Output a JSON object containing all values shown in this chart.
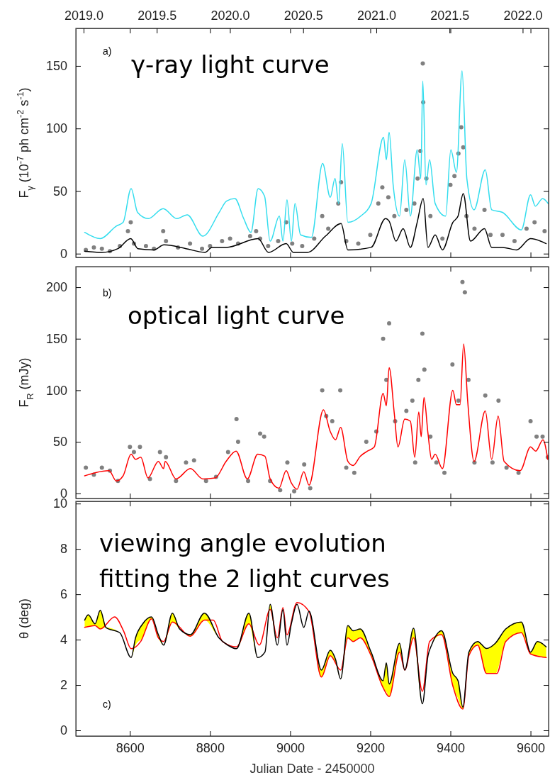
{
  "chart_data": [
    {
      "type": "line",
      "ylabel": "F$_{γ}$ (10$^{-7}$ ph cm$^{-2}$ s$^{-1}$)",
      "annotations": [
        "a)",
        "γ-ray light curve"
      ],
      "xlim": [
        8465,
        9645
      ],
      "xticks": [
        8600,
        8800,
        9000,
        9200,
        9400,
        9600
      ],
      "ylim": [
        -3,
        180
      ],
      "yticks": [
        0,
        50,
        100,
        150
      ],
      "tick_labels": "y",
      "x2lim": [
        2018.947,
        2022.177
      ],
      "x2ticks": [
        {
          "value": 2019,
          "label": "2019.0"
        },
        {
          "value": 2019.5,
          "label": "2019.5"
        },
        {
          "value": 2020,
          "label": "2020.0"
        },
        {
          "value": 2020.5,
          "label": "2020.5"
        },
        {
          "value": 2021,
          "label": "2021.0"
        },
        {
          "value": 2021.5,
          "label": "2021.5"
        },
        {
          "value": 2022,
          "label": "2022.0"
        }
      ],
      "series": [
        {
          "type": "scatter",
          "marker": "circle",
          "color": "#808080",
          "x": [
            8490,
            8510,
            8530,
            8550,
            8575,
            8595,
            8602,
            8610,
            8640,
            8660,
            8683,
            8690,
            8720,
            8750,
            8780,
            8800,
            8830,
            8850,
            8870,
            8900,
            8915,
            8925,
            8945,
            8970,
            8990,
            9005,
            9030,
            9060,
            9080,
            9095,
            9120,
            9127,
            9140,
            9170,
            9200,
            9220,
            9230,
            9245,
            9260,
            9290,
            9310,
            9318,
            9325,
            9331,
            9332,
            9340,
            9350,
            9380,
            9400,
            9410,
            9420,
            9427,
            9432,
            9440,
            9460,
            9485,
            9500,
            9530,
            9560,
            9590,
            9610,
            9635
          ],
          "values": [
            3,
            5,
            4,
            2,
            6,
            18,
            25,
            8,
            6,
            4,
            18,
            10,
            5,
            8,
            4,
            6,
            10,
            12,
            8,
            14,
            18,
            12,
            6,
            10,
            25,
            8,
            6,
            12,
            30,
            20,
            40,
            57,
            10,
            8,
            15,
            40,
            53,
            45,
            30,
            35,
            40,
            60,
            82,
            152,
            121,
            60,
            30,
            12,
            55,
            62,
            80,
            101,
            85,
            30,
            20,
            35,
            15,
            15,
            10,
            20,
            25,
            18
          ]
        },
        {
          "color": "#33ddee",
          "x": [
            8487,
            8526,
            8566,
            8583,
            8603,
            8619,
            8646,
            8683,
            8717,
            8743,
            8782,
            8823,
            8841,
            8862,
            8884,
            8902,
            8920,
            8936,
            8950,
            8973,
            8982,
            8992,
            9003,
            9012,
            9026,
            9053,
            9081,
            9100,
            9112,
            9121,
            9130,
            9144,
            9176,
            9202,
            9233,
            9240,
            9247,
            9257,
            9273,
            9286,
            9300,
            9317,
            9326,
            9331,
            9339,
            9348,
            9362,
            9388,
            9401,
            9415,
            9429,
            9441,
            9459,
            9487,
            9503,
            9530,
            9577,
            9600,
            9612,
            9630,
            9644
          ],
          "values": [
            17,
            12,
            22,
            25,
            52,
            33,
            28,
            36,
            28,
            31,
            14,
            33,
            42,
            44,
            28,
            17,
            52,
            46,
            10,
            30,
            10,
            43,
            10,
            40,
            15,
            13,
            72,
            45,
            60,
            40,
            88,
            25,
            30,
            40,
            93,
            75,
            97,
            55,
            30,
            75,
            30,
            83,
            60,
            138,
            55,
            75,
            40,
            30,
            83,
            65,
            146,
            60,
            35,
            67,
            35,
            33,
            19,
            47,
            38,
            44,
            40
          ]
        },
        {
          "color": "#000000",
          "x": [
            8487,
            8530,
            8570,
            8602,
            8620,
            8660,
            8685,
            8740,
            8787,
            8805,
            8840,
            8920,
            8946,
            8990,
            9008,
            9043,
            9088,
            9127,
            9144,
            9202,
            9238,
            9247,
            9264,
            9282,
            9300,
            9317,
            9332,
            9344,
            9362,
            9380,
            9406,
            9419,
            9432,
            9450,
            9485,
            9503,
            9530,
            9565,
            9600,
            9639
          ],
          "values": [
            2,
            1,
            4,
            12,
            4,
            3,
            7,
            4,
            1,
            5,
            5,
            12,
            1,
            8,
            1,
            1,
            14,
            24,
            3,
            5,
            28,
            26,
            10,
            20,
            5,
            25,
            44,
            5,
            15,
            3,
            25,
            30,
            48,
            10,
            20,
            5,
            5,
            3,
            12,
            8
          ]
        }
      ]
    },
    {
      "type": "line",
      "ylabel": "F$_{R}$ (mJy)",
      "annotations": [
        "b)",
        "optical light curve"
      ],
      "xlim": [
        8465,
        9645
      ],
      "xticks": [
        8600,
        8800,
        9000,
        9200,
        9400,
        9600
      ],
      "ylim": [
        -5,
        220
      ],
      "yticks": [
        0,
        50,
        100,
        150,
        200
      ],
      "tick_labels": "y",
      "series": [
        {
          "type": "scatter",
          "marker": "circle",
          "color": "#808080",
          "x": [
            8490,
            8510,
            8530,
            8550,
            8570,
            8600,
            8610,
            8625,
            8650,
            8675,
            8690,
            8715,
            8740,
            8760,
            8790,
            8815,
            8845,
            8866,
            8870,
            8895,
            8925,
            8935,
            8950,
            8975,
            8993,
            9010,
            9035,
            9050,
            9080,
            9090,
            9105,
            9125,
            9140,
            9160,
            9190,
            9215,
            9232,
            9240,
            9247,
            9262,
            9290,
            9305,
            9312,
            9320,
            9330,
            9335,
            9350,
            9365,
            9385,
            9405,
            9420,
            9430,
            9436,
            9445,
            9460,
            9487,
            9505,
            9520,
            9540,
            9570,
            9600,
            9615,
            9630,
            9643
          ],
          "values": [
            25,
            18,
            25,
            22,
            12,
            45,
            40,
            45,
            14,
            40,
            35,
            12,
            30,
            32,
            12,
            16,
            40,
            72,
            50,
            12,
            58,
            55,
            12,
            3,
            30,
            2,
            28,
            5,
            100,
            75,
            70,
            100,
            25,
            20,
            50,
            60,
            150,
            110,
            165,
            70,
            80,
            90,
            30,
            110,
            155,
            120,
            55,
            30,
            20,
            125,
            90,
            205,
            195,
            110,
            30,
            95,
            30,
            90,
            25,
            20,
            70,
            55,
            55,
            35
          ]
        },
        {
          "color": "#ff0000",
          "x": [
            8487,
            8513,
            8548,
            8566,
            8583,
            8603,
            8614,
            8627,
            8645,
            8671,
            8684,
            8688,
            8715,
            8751,
            8782,
            8813,
            8840,
            8865,
            8893,
            8919,
            8937,
            8950,
            8972,
            8990,
            9003,
            9017,
            9034,
            9047,
            9083,
            9100,
            9113,
            9126,
            9144,
            9157,
            9175,
            9193,
            9210,
            9232,
            9240,
            9247,
            9260,
            9269,
            9286,
            9300,
            9311,
            9321,
            9327,
            9334,
            9344,
            9353,
            9362,
            9380,
            9406,
            9415,
            9424,
            9433,
            9443,
            9459,
            9487,
            9503,
            9519,
            9534,
            9574,
            9600,
            9613,
            9631,
            9643
          ],
          "values": [
            17,
            20,
            22,
            12,
            17,
            38,
            33,
            35,
            15,
            31,
            24,
            31,
            14,
            24,
            14,
            15,
            31,
            41,
            14,
            38,
            36,
            14,
            5,
            22,
            10,
            4,
            21,
            8,
            81,
            60,
            52,
            64,
            31,
            27,
            36,
            41,
            45,
            97,
            85,
            122,
            77,
            45,
            72,
            70,
            35,
            79,
            55,
            93,
            58,
            33,
            38,
            24,
            100,
            86,
            86,
            145,
            90,
            31,
            80,
            33,
            75,
            31,
            22,
            45,
            41,
            52,
            33
          ]
        }
      ]
    },
    {
      "type": "line",
      "ylabel": "θ (deg)",
      "xlabel": "Julian Date - 2450000",
      "annotations": [
        "c)",
        "viewing angle evolution",
        "fitting the 2 light curves"
      ],
      "xlim": [
        8465,
        9645
      ],
      "xticks": [
        8600,
        8800,
        9000,
        9200,
        9400,
        9600
      ],
      "ylim": [
        -0.25,
        10.1
      ],
      "yticks": [
        0,
        2,
        4,
        6,
        8,
        10
      ],
      "series": [
        {
          "color": "#ff0000",
          "x": [
            8487,
            8513,
            8526,
            8562,
            8584,
            8603,
            8627,
            8654,
            8671,
            8684,
            8706,
            8751,
            8786,
            8808,
            8831,
            8866,
            8897,
            8923,
            8950,
            8968,
            8982,
            8992,
            9017,
            9047,
            9078,
            9100,
            9126,
            9144,
            9157,
            9175,
            9202,
            9232,
            9247,
            9273,
            9286,
            9308,
            9330,
            9348,
            9378,
            9406,
            9431,
            9446,
            9468,
            9490,
            9516,
            9538,
            9577,
            9600,
            9639
          ],
          "values": [
            4.54,
            4.62,
            4.47,
            5.0,
            4.39,
            3.6,
            3.92,
            4.92,
            4.08,
            3.92,
            4.78,
            4.15,
            4.86,
            4.86,
            3.92,
            3.68,
            4.7,
            3.76,
            5.33,
            4.08,
            5.41,
            4.22,
            5.64,
            5.25,
            2.35,
            3.29,
            2.66,
            4.08,
            3.92,
            4.08,
            3.29,
            1.88,
            1.49,
            3.45,
            2.66,
            4.08,
            1.72,
            3.92,
            4.22,
            1.96,
            0.94,
            3.29,
            3.76,
            2.51,
            2.51,
            3.92,
            4.31,
            3.37,
            3.21
          ]
        },
        {
          "color": "#000000",
          "x": [
            8487,
            8496,
            8513,
            8526,
            8540,
            8575,
            8603,
            8614,
            8632,
            8654,
            8671,
            8684,
            8706,
            8724,
            8751,
            8786,
            8822,
            8844,
            8866,
            8897,
            8919,
            8937,
            8950,
            8968,
            8982,
            8992,
            9003,
            9017,
            9034,
            9047,
            9078,
            9100,
            9113,
            9126,
            9144,
            9157,
            9175,
            9202,
            9232,
            9240,
            9247,
            9273,
            9286,
            9308,
            9330,
            9344,
            9353,
            9378,
            9406,
            9419,
            9431,
            9446,
            9468,
            9490,
            9512,
            9538,
            9577,
            9600,
            9617,
            9639
          ],
          "values": [
            4.86,
            5.1,
            4.7,
            5.3,
            4.54,
            4.3,
            3.21,
            4.08,
            4.7,
            5.0,
            4.22,
            3.76,
            5.17,
            4.47,
            4.22,
            5.17,
            4.08,
            3.76,
            3.6,
            5.17,
            3.21,
            3.45,
            5.56,
            3.76,
            5.33,
            3.76,
            4.7,
            5.56,
            4.54,
            5.25,
            2.66,
            3.53,
            3.14,
            2.27,
            4.62,
            4.39,
            4.47,
            3.45,
            2.19,
            2.98,
            2.04,
            3.84,
            2.66,
            4.5,
            1.17,
            3.29,
            3.76,
            4.39,
            2.51,
            2.19,
            1.02,
            3.45,
            3.92,
            3.61,
            3.84,
            4.47,
            4.78,
            3.45,
            3.92,
            3.68
          ],
          "lower": [
            4.54,
            4.58,
            4.62,
            4.47,
            4.54,
            4.3,
            3.21,
            3.75,
            4.1,
            4.92,
            4.08,
            3.76,
            4.78,
            4.47,
            4.15,
            4.86,
            4.08,
            3.76,
            3.6,
            4.7,
            3.21,
            3.45,
            5.33,
            3.76,
            5.33,
            3.76,
            4.7,
            5.56,
            4.54,
            5.25,
            2.35,
            3.29,
            3.0,
            2.27,
            4.08,
            3.92,
            4.08,
            3.29,
            1.88,
            1.7,
            1.49,
            3.45,
            2.66,
            4.08,
            1.17,
            3.29,
            3.76,
            4.22,
            1.96,
            1.4,
            0.94,
            3.29,
            3.76,
            2.51,
            2.51,
            3.92,
            4.31,
            3.37,
            3.3,
            3.21
          ],
          "upper": [
            4.86,
            5.1,
            4.7,
            5.3,
            4.54,
            4.3,
            3.21,
            4.08,
            4.7,
            5.0,
            4.22,
            3.76,
            5.17,
            4.47,
            4.22,
            5.17,
            4.08,
            3.76,
            3.6,
            5.17,
            3.21,
            3.45,
            5.56,
            3.76,
            5.33,
            3.76,
            4.7,
            5.56,
            4.54,
            5.25,
            2.66,
            3.53,
            3.14,
            2.27,
            4.62,
            4.39,
            4.47,
            3.45,
            2.19,
            2.98,
            2.04,
            3.84,
            2.66,
            4.5,
            1.17,
            3.29,
            3.76,
            4.39,
            2.51,
            2.19,
            1.02,
            3.45,
            3.92,
            3.61,
            3.84,
            4.47,
            4.78,
            3.45,
            3.92,
            3.68
          ]
        }
      ]
    }
  ]
}
